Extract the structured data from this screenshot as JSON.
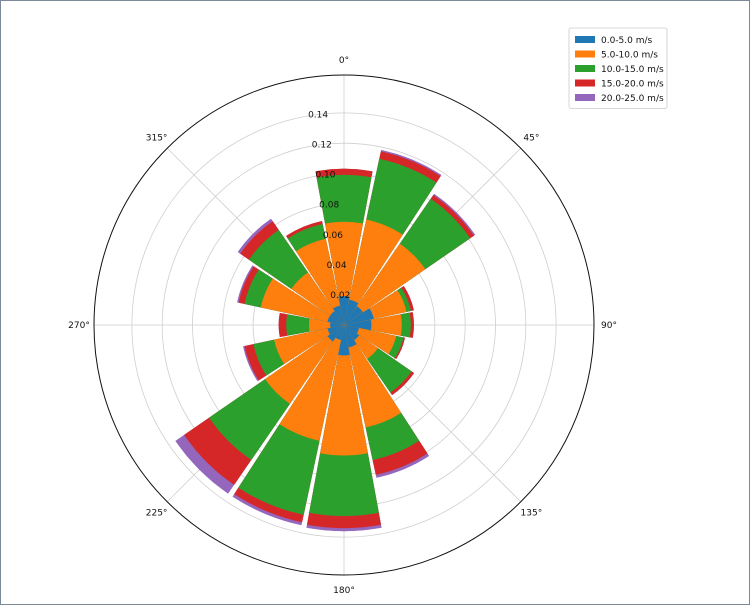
{
  "chart_data": {
    "type": "windrose",
    "direction_labels": [
      "0°",
      "45°",
      "90°",
      "135°",
      "180°",
      "225°",
      "270°",
      "315°"
    ],
    "radial_ticks": [
      "0.02",
      "0.04",
      "0.06",
      "0.08",
      "0.10",
      "0.12",
      "0.14"
    ],
    "radial_tick_values": [
      0.02,
      0.04,
      0.06,
      0.08,
      0.1,
      0.12,
      0.14
    ],
    "rlim": [
      0,
      0.165
    ],
    "theta_zero": "north",
    "theta_direction": "clockwise",
    "grid": true,
    "legend_position": "top-right",
    "sector_centers_deg": [
      0,
      22.5,
      45,
      67.5,
      90,
      112.5,
      135,
      157.5,
      180,
      202.5,
      225,
      247.5,
      270,
      292.5,
      315,
      337.5
    ],
    "series": [
      {
        "name": "0.0-5.0 m/s",
        "color": "#1f77b4",
        "values": [
          0.019,
          0.017,
          0.015,
          0.02,
          0.018,
          0.01,
          0.012,
          0.015,
          0.02,
          0.01,
          0.013,
          0.011,
          0.009,
          0.011,
          0.011,
          0.013
        ]
      },
      {
        "name": "5.0-10.0 m/s",
        "color": "#ff7f0e",
        "values": [
          0.049,
          0.054,
          0.05,
          0.022,
          0.02,
          0.025,
          0.015,
          0.054,
          0.066,
          0.068,
          0.05,
          0.036,
          0.014,
          0.045,
          0.031,
          0.045
        ]
      },
      {
        "name": "10.0-15.0 m/s",
        "color": "#2ca02c",
        "values": [
          0.031,
          0.041,
          0.036,
          0.003,
          0.006,
          0.005,
          0.027,
          0.022,
          0.04,
          0.05,
          0.045,
          0.014,
          0.015,
          0.011,
          0.034,
          0.01
        ]
      },
      {
        "name": "15.0-20.0 m/s",
        "color": "#d62728",
        "values": [
          0.004,
          0.005,
          0.003,
          0.002,
          0.002,
          0.001,
          0.002,
          0.01,
          0.008,
          0.005,
          0.02,
          0.006,
          0.005,
          0.004,
          0.007,
          0.002
        ]
      },
      {
        "name": "20.0-25.0 m/s",
        "color": "#9467bd",
        "values": [
          0.0,
          0.001,
          0.001,
          0.0,
          0.0,
          0.0,
          0.0,
          0.002,
          0.002,
          0.002,
          0.007,
          0.001,
          0.0,
          0.001,
          0.002,
          0.0
        ]
      }
    ]
  }
}
